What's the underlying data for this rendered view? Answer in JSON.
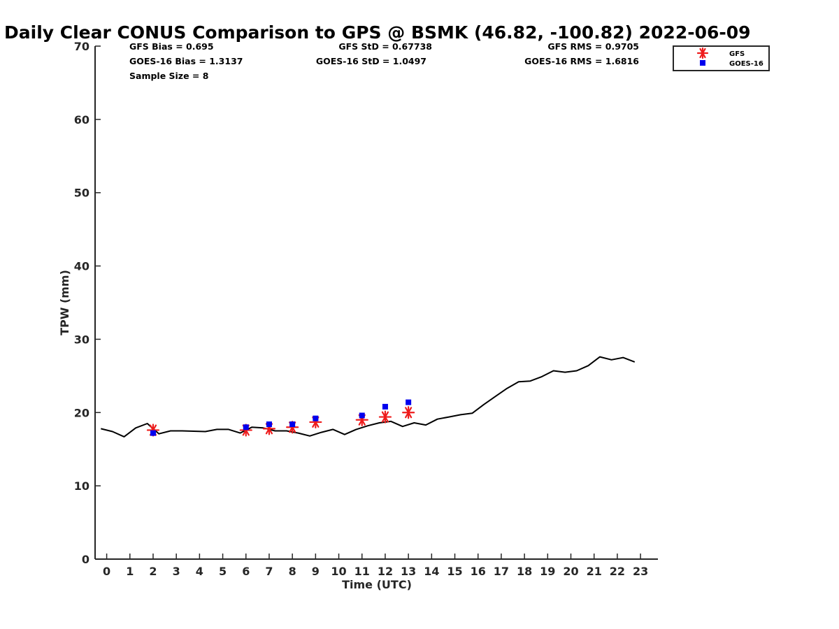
{
  "chart_data": {
    "type": "line",
    "title": "Daily Clear CONUS Comparison to GPS @ BSMK (46.82, -100.82) 2022-06-09",
    "xlabel": "Time (UTC)",
    "ylabel": "TPW (mm)",
    "xlim": [
      -0.5,
      23.75
    ],
    "ylim": [
      0,
      70
    ],
    "xticks": [
      0,
      1,
      2,
      3,
      4,
      5,
      6,
      7,
      8,
      9,
      10,
      11,
      12,
      13,
      14,
      15,
      16,
      17,
      18,
      19,
      20,
      21,
      22,
      23
    ],
    "yticks": [
      0,
      10,
      20,
      30,
      40,
      50,
      60,
      70
    ],
    "grid": false,
    "legend_position": "top-right",
    "stats": {
      "gfs_bias": "GFS Bias = 0.695",
      "goes_bias": "GOES-16 Bias = 1.3137",
      "sample_size": "Sample Size = 8",
      "gfs_std": "GFS StD = 0.67738",
      "goes_std": "GOES-16 StD = 1.0497",
      "gfs_rms": "GFS RMS = 0.9705",
      "goes_rms": "GOES-16 RMS = 1.6816"
    },
    "series": [
      {
        "name": "",
        "kind": "line",
        "color": "#000000",
        "x": [
          -0.25,
          0.25,
          0.75,
          1.25,
          1.75,
          2.25,
          2.75,
          3.25,
          3.75,
          4.25,
          4.75,
          5.25,
          5.75,
          6.25,
          6.75,
          7.25,
          7.75,
          8.25,
          8.75,
          9.25,
          9.75,
          10.25,
          10.75,
          11.25,
          11.75,
          12.25,
          12.75,
          13.25,
          13.75,
          14.25,
          14.75,
          15.25,
          15.75,
          16.25,
          16.75,
          17.25,
          17.75,
          18.25,
          18.75,
          19.25,
          19.75,
          20.25,
          20.75,
          21.25,
          21.75,
          22.25,
          22.75
        ],
        "y": [
          17.8,
          17.4,
          16.7,
          17.9,
          18.5,
          17.1,
          17.5,
          17.5,
          17.45,
          17.4,
          17.7,
          17.7,
          17.2,
          18.0,
          17.9,
          17.5,
          17.5,
          17.2,
          16.8,
          17.3,
          17.7,
          17.0,
          17.7,
          18.2,
          18.6,
          18.8,
          18.1,
          18.6,
          18.3,
          19.1,
          19.4,
          19.7,
          19.9,
          21.1,
          22.2,
          23.3,
          24.2,
          24.3,
          24.9,
          25.7,
          25.5,
          25.7,
          26.4,
          27.6,
          27.2,
          27.5,
          26.9
        ]
      },
      {
        "name": "GFS",
        "kind": "scatter",
        "marker": "asterisk",
        "color": "#ee1c1c",
        "x": [
          2,
          6,
          7,
          8,
          9,
          11,
          12,
          13
        ],
        "y": [
          17.6,
          17.6,
          17.8,
          18.0,
          18.7,
          19.0,
          19.4,
          20.0
        ]
      },
      {
        "name": "GOES-16",
        "kind": "scatter",
        "marker": "square",
        "color": "#0000ee",
        "x": [
          2,
          6,
          7,
          8,
          9,
          11,
          12,
          13
        ],
        "y": [
          17.2,
          18.0,
          18.4,
          18.4,
          19.2,
          19.6,
          20.8,
          21.4
        ]
      }
    ]
  }
}
